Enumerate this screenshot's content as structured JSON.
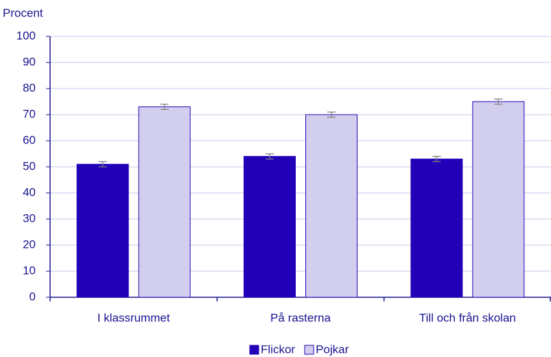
{
  "chart_data": {
    "type": "bar",
    "y_label": "Procent",
    "categories": [
      "I klassrummet",
      "På rasterna",
      "Till och från skolan"
    ],
    "series": [
      {
        "name": "Flickor",
        "color": "#2200b8",
        "values": [
          51,
          54,
          53
        ],
        "errors": [
          1,
          1,
          1
        ]
      },
      {
        "name": "Pojkar",
        "color": "#d2cfee",
        "values": [
          73,
          70,
          75
        ],
        "errors": [
          1,
          1,
          1
        ]
      }
    ],
    "ylim": [
      0,
      100
    ],
    "yticks": [
      0,
      10,
      20,
      30,
      40,
      50,
      60,
      70,
      80,
      90,
      100
    ],
    "grid": true,
    "legend": "bottom"
  }
}
